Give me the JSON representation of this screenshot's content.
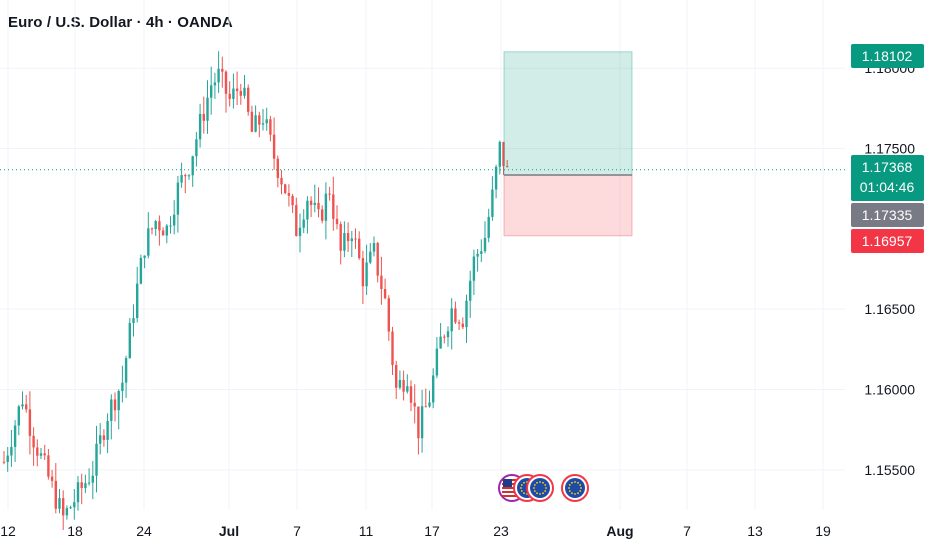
{
  "header": {
    "title": "Euro / U.S. Dollar · 4h · OANDA"
  },
  "chart_data": {
    "type": "candlestick",
    "instrument": "Euro / U.S. Dollar",
    "timeframe": "4h",
    "source": "OANDA",
    "ylim": [
      1.1525,
      1.183
    ],
    "y_ticks": [
      "1.15500",
      "1.16000",
      "1.16500",
      "1.17500",
      "1.18000"
    ],
    "x_ticks": [
      {
        "label": "12",
        "bold": false
      },
      {
        "label": "18",
        "bold": false
      },
      {
        "label": "24",
        "bold": false
      },
      {
        "label": "Jul",
        "bold": true
      },
      {
        "label": "7",
        "bold": false
      },
      {
        "label": "11",
        "bold": false
      },
      {
        "label": "17",
        "bold": false
      },
      {
        "label": "23",
        "bold": false
      },
      {
        "label": "Aug",
        "bold": true
      },
      {
        "label": "7",
        "bold": false
      },
      {
        "label": "13",
        "bold": false
      },
      {
        "label": "19",
        "bold": false
      }
    ],
    "price_badges": {
      "take_profit": "1.18102",
      "current_price": "1.17368",
      "countdown": "01:04:46",
      "entry": "1.17335",
      "stop_loss": "1.16957"
    },
    "position": {
      "type": "long",
      "entry": 1.17335,
      "take_profit": 1.18102,
      "stop_loss": 1.16957
    },
    "current_price": 1.17368,
    "anchor_points": [
      [
        0,
        1.1555
      ],
      [
        5,
        1.1595
      ],
      [
        8,
        1.157
      ],
      [
        12,
        1.1545
      ],
      [
        16,
        1.152
      ],
      [
        20,
        1.1535
      ],
      [
        24,
        1.155
      ],
      [
        28,
        1.1585
      ],
      [
        32,
        1.1605
      ],
      [
        35,
        1.165
      ],
      [
        38,
        1.169
      ],
      [
        41,
        1.1705
      ],
      [
        44,
        1.17
      ],
      [
        47,
        1.1725
      ],
      [
        50,
        1.174
      ],
      [
        53,
        1.1765
      ],
      [
        56,
        1.179
      ],
      [
        58,
        1.1795
      ],
      [
        61,
        1.178
      ],
      [
        64,
        1.179
      ],
      [
        67,
        1.176
      ],
      [
        70,
        1.177
      ],
      [
        73,
        1.1745
      ],
      [
        76,
        1.1725
      ],
      [
        79,
        1.17
      ],
      [
        82,
        1.172
      ],
      [
        85,
        1.1705
      ],
      [
        88,
        1.1725
      ],
      [
        91,
        1.1685
      ],
      [
        94,
        1.17
      ],
      [
        97,
        1.167
      ],
      [
        100,
        1.1685
      ],
      [
        103,
        1.1655
      ],
      [
        106,
        1.16
      ],
      [
        109,
        1.161
      ],
      [
        112,
        1.1575
      ],
      [
        115,
        1.1595
      ],
      [
        118,
        1.163
      ],
      [
        121,
        1.165
      ],
      [
        124,
        1.1645
      ],
      [
        127,
        1.168
      ],
      [
        130,
        1.1695
      ],
      [
        132,
        1.172
      ],
      [
        134,
        1.175
      ],
      [
        136,
        1.1735
      ]
    ],
    "gridlines": true
  },
  "colors": {
    "up": "#26a69a",
    "down": "#ef5350",
    "grid": "#f0f3fa",
    "axis_text": "#131722",
    "badge_green": "#089981",
    "badge_gray": "#787b86",
    "badge_red": "#f23645",
    "profit_zone": "rgba(8,153,129,0.18)",
    "loss_zone": "rgba(242,54,69,0.18)",
    "current_line": "#089981"
  },
  "event_icons": [
    {
      "name": "us-flag-icon"
    },
    {
      "name": "eu-flag-icon"
    },
    {
      "name": "eu-flag-icon"
    },
    {
      "name": "eu-flag-icon"
    }
  ]
}
